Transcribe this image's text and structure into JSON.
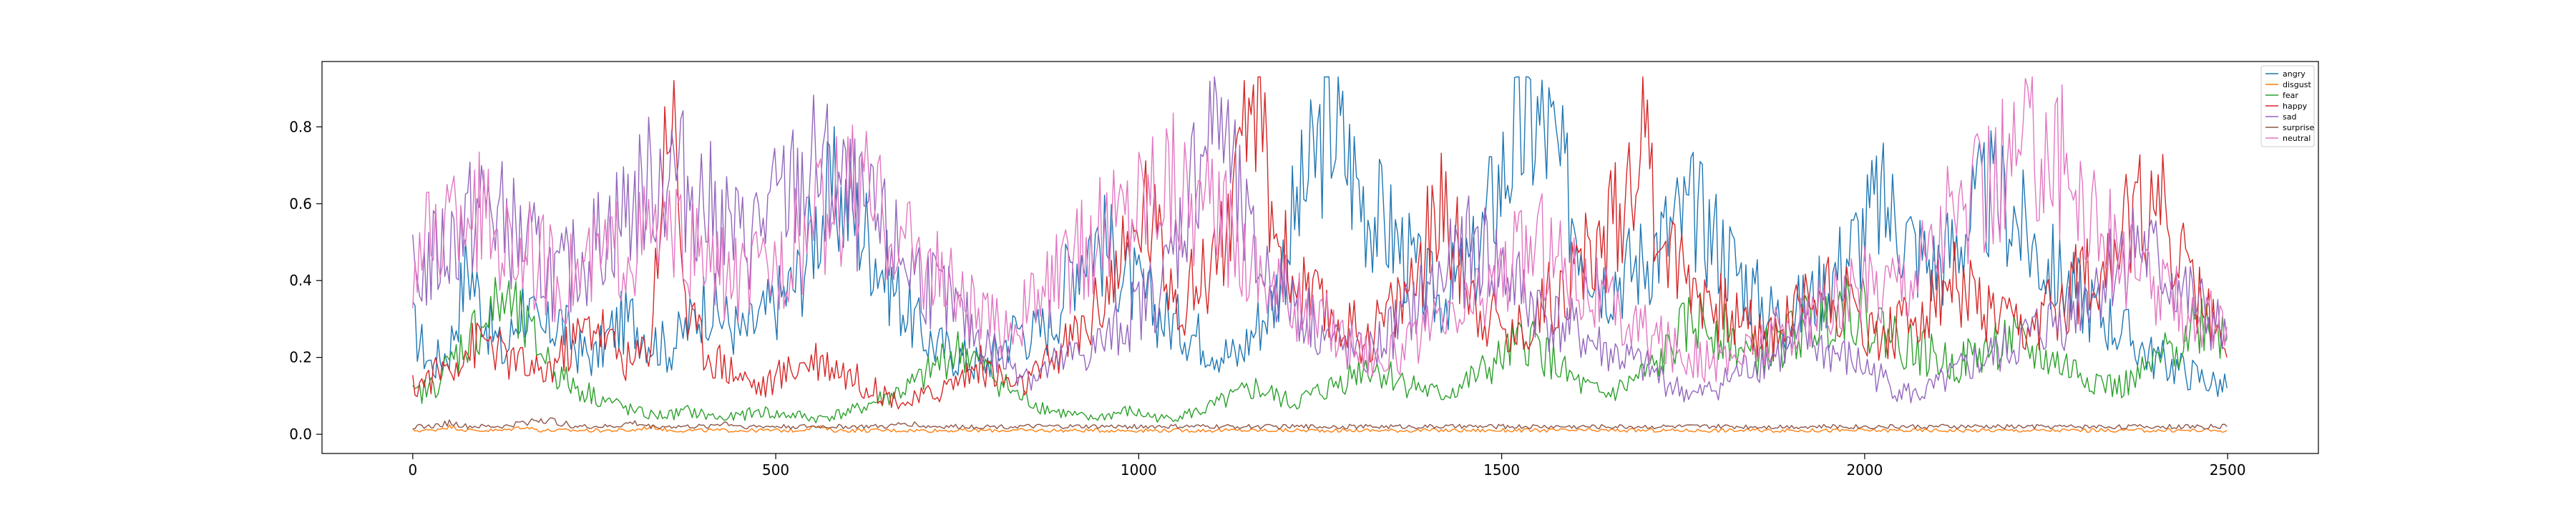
{
  "chart_data": {
    "type": "line",
    "title": "",
    "xlabel": "",
    "ylabel": "",
    "xlim": [
      -125,
      2625
    ],
    "ylim": [
      -0.05,
      0.97
    ],
    "xticks": [
      0,
      500,
      1000,
      1500,
      2000,
      2500
    ],
    "yticks": [
      0.0,
      0.2,
      0.4,
      0.6,
      0.8
    ],
    "xtick_labels": [
      "0",
      "500",
      "1000",
      "1500",
      "2000",
      "2500"
    ],
    "ytick_labels": [
      "0.0",
      "0.2",
      "0.4",
      "0.6",
      "0.8"
    ],
    "n_points": 2500,
    "grid": false,
    "legend_position": "top-right",
    "series": [
      {
        "name": "angry",
        "color": "#1f77b4",
        "values": [
          0.28,
          0.18,
          0.22,
          0.45,
          0.3,
          0.2,
          0.35,
          0.25,
          0.3,
          0.22,
          0.2,
          0.28,
          0.3,
          0.25,
          0.22,
          0.28,
          0.35,
          0.3,
          0.26,
          0.3,
          0.35,
          0.4,
          0.55,
          0.62,
          0.58,
          0.5,
          0.4,
          0.32,
          0.25,
          0.22,
          0.2,
          0.18,
          0.22,
          0.28,
          0.26,
          0.3,
          0.45,
          0.52,
          0.48,
          0.4,
          0.35,
          0.3,
          0.28,
          0.25,
          0.22,
          0.2,
          0.28,
          0.35,
          0.55,
          0.68,
          0.84,
          0.72,
          0.6,
          0.55,
          0.48,
          0.4,
          0.35,
          0.4,
          0.45,
          0.62,
          0.75,
          0.82,
          0.78,
          0.62,
          0.5,
          0.4,
          0.42,
          0.45,
          0.5,
          0.55,
          0.58,
          0.52,
          0.45,
          0.38,
          0.32,
          0.3,
          0.34,
          0.38,
          0.45,
          0.52,
          0.6,
          0.56,
          0.48,
          0.44,
          0.48,
          0.56,
          0.62,
          0.6,
          0.52,
          0.45,
          0.4,
          0.36,
          0.32,
          0.28,
          0.24,
          0.2,
          0.18,
          0.16,
          0.14,
          0.12
        ]
      },
      {
        "name": "disgust",
        "color": "#ff7f0e",
        "values": [
          0.01,
          0.01,
          0.02,
          0.01,
          0.01,
          0.01,
          0.02,
          0.01,
          0.01,
          0.01,
          0.01,
          0.01,
          0.01,
          0.02,
          0.01,
          0.01,
          0.01,
          0.01,
          0.01,
          0.01,
          0.01,
          0.01,
          0.02,
          0.01,
          0.01,
          0.01,
          0.01,
          0.01,
          0.01,
          0.01,
          0.01,
          0.01,
          0.01,
          0.01,
          0.01,
          0.01,
          0.01,
          0.01,
          0.01,
          0.01,
          0.01,
          0.01,
          0.01,
          0.01,
          0.01,
          0.01,
          0.01,
          0.01,
          0.01,
          0.01,
          0.01,
          0.01,
          0.01,
          0.01,
          0.01,
          0.01,
          0.01,
          0.01,
          0.01,
          0.01,
          0.01,
          0.01,
          0.01,
          0.01,
          0.01,
          0.01,
          0.01,
          0.01,
          0.01,
          0.01,
          0.01,
          0.01,
          0.01,
          0.01,
          0.01,
          0.01,
          0.01,
          0.01,
          0.01,
          0.01,
          0.01,
          0.01,
          0.01,
          0.01,
          0.01,
          0.01,
          0.01,
          0.01,
          0.01,
          0.01,
          0.01,
          0.01,
          0.01,
          0.01,
          0.01,
          0.01,
          0.01,
          0.01,
          0.01,
          0.01
        ]
      },
      {
        "name": "fear",
        "color": "#2ca02c",
        "values": [
          0.1,
          0.12,
          0.18,
          0.25,
          0.3,
          0.35,
          0.28,
          0.22,
          0.15,
          0.12,
          0.1,
          0.08,
          0.06,
          0.05,
          0.05,
          0.06,
          0.05,
          0.04,
          0.05,
          0.06,
          0.05,
          0.05,
          0.04,
          0.05,
          0.06,
          0.08,
          0.1,
          0.12,
          0.15,
          0.2,
          0.22,
          0.18,
          0.14,
          0.1,
          0.08,
          0.06,
          0.05,
          0.04,
          0.05,
          0.06,
          0.05,
          0.04,
          0.05,
          0.06,
          0.08,
          0.1,
          0.12,
          0.1,
          0.08,
          0.1,
          0.12,
          0.15,
          0.18,
          0.16,
          0.14,
          0.12,
          0.1,
          0.12,
          0.15,
          0.18,
          0.22,
          0.25,
          0.2,
          0.15,
          0.12,
          0.1,
          0.12,
          0.15,
          0.18,
          0.25,
          0.3,
          0.28,
          0.25,
          0.2,
          0.22,
          0.25,
          0.28,
          0.3,
          0.35,
          0.32,
          0.28,
          0.25,
          0.22,
          0.2,
          0.18,
          0.2,
          0.22,
          0.25,
          0.22,
          0.2,
          0.18,
          0.16,
          0.14,
          0.12,
          0.14,
          0.18,
          0.22,
          0.28,
          0.3,
          0.25
        ]
      },
      {
        "name": "happy",
        "color": "#d62728",
        "values": [
          0.12,
          0.15,
          0.18,
          0.22,
          0.25,
          0.2,
          0.18,
          0.15,
          0.2,
          0.25,
          0.3,
          0.22,
          0.18,
          0.25,
          0.93,
          0.3,
          0.22,
          0.18,
          0.15,
          0.12,
          0.15,
          0.18,
          0.2,
          0.18,
          0.15,
          0.12,
          0.1,
          0.08,
          0.1,
          0.12,
          0.15,
          0.18,
          0.15,
          0.12,
          0.15,
          0.2,
          0.25,
          0.3,
          0.4,
          0.45,
          0.6,
          0.45,
          0.35,
          0.4,
          0.5,
          0.6,
          0.92,
          0.55,
          0.4,
          0.35,
          0.3,
          0.28,
          0.25,
          0.3,
          0.35,
          0.45,
          0.6,
          0.48,
          0.35,
          0.3,
          0.25,
          0.3,
          0.35,
          0.4,
          0.45,
          0.5,
          0.6,
          0.82,
          0.55,
          0.45,
          0.4,
          0.35,
          0.3,
          0.28,
          0.25,
          0.3,
          0.35,
          0.4,
          0.35,
          0.3,
          0.25,
          0.28,
          0.3,
          0.35,
          0.4,
          0.35,
          0.3,
          0.28,
          0.25,
          0.3,
          0.35,
          0.4,
          0.45,
          0.5,
          0.55,
          0.65,
          0.5,
          0.4,
          0.3,
          0.2
        ]
      },
      {
        "name": "sad",
        "color": "#9467bd",
        "values": [
          0.4,
          0.45,
          0.5,
          0.55,
          0.6,
          0.55,
          0.5,
          0.45,
          0.4,
          0.45,
          0.5,
          0.55,
          0.6,
          0.65,
          0.7,
          0.65,
          0.6,
          0.55,
          0.5,
          0.55,
          0.6,
          0.65,
          0.7,
          0.65,
          0.6,
          0.55,
          0.5,
          0.45,
          0.4,
          0.35,
          0.3,
          0.25,
          0.2,
          0.18,
          0.15,
          0.18,
          0.2,
          0.22,
          0.25,
          0.3,
          0.35,
          0.4,
          0.55,
          0.75,
          0.85,
          0.6,
          0.45,
          0.4,
          0.35,
          0.3,
          0.25,
          0.22,
          0.2,
          0.25,
          0.3,
          0.35,
          0.4,
          0.45,
          0.5,
          0.45,
          0.4,
          0.35,
          0.3,
          0.28,
          0.25,
          0.22,
          0.2,
          0.18,
          0.15,
          0.12,
          0.1,
          0.12,
          0.15,
          0.18,
          0.2,
          0.22,
          0.25,
          0.22,
          0.2,
          0.18,
          0.15,
          0.12,
          0.1,
          0.12,
          0.15,
          0.18,
          0.2,
          0.22,
          0.25,
          0.28,
          0.3,
          0.35,
          0.4,
          0.45,
          0.5,
          0.45,
          0.4,
          0.35,
          0.3,
          0.25
        ]
      },
      {
        "name": "surprise",
        "color": "#8c564b",
        "values": [
          0.02,
          0.02,
          0.03,
          0.02,
          0.02,
          0.02,
          0.03,
          0.04,
          0.03,
          0.02,
          0.02,
          0.02,
          0.03,
          0.02,
          0.02,
          0.02,
          0.02,
          0.03,
          0.02,
          0.02,
          0.02,
          0.02,
          0.02,
          0.02,
          0.02,
          0.02,
          0.02,
          0.03,
          0.02,
          0.02,
          0.02,
          0.02,
          0.02,
          0.02,
          0.02,
          0.02,
          0.02,
          0.02,
          0.02,
          0.02,
          0.02,
          0.02,
          0.02,
          0.02,
          0.02,
          0.02,
          0.02,
          0.02,
          0.02,
          0.02,
          0.02,
          0.02,
          0.02,
          0.02,
          0.02,
          0.02,
          0.02,
          0.02,
          0.02,
          0.02,
          0.02,
          0.02,
          0.02,
          0.02,
          0.02,
          0.02,
          0.02,
          0.02,
          0.02,
          0.02,
          0.02,
          0.02,
          0.02,
          0.02,
          0.02,
          0.02,
          0.02,
          0.02,
          0.02,
          0.02,
          0.02,
          0.02,
          0.02,
          0.02,
          0.02,
          0.02,
          0.02,
          0.02,
          0.02,
          0.02,
          0.02,
          0.02,
          0.02,
          0.02,
          0.02,
          0.02,
          0.02,
          0.02,
          0.02,
          0.02
        ]
      },
      {
        "name": "neutral",
        "color": "#e377c2",
        "values": [
          0.45,
          0.5,
          0.55,
          0.6,
          0.55,
          0.5,
          0.48,
          0.45,
          0.4,
          0.42,
          0.45,
          0.48,
          0.5,
          0.52,
          0.5,
          0.48,
          0.45,
          0.42,
          0.4,
          0.42,
          0.45,
          0.5,
          0.55,
          0.6,
          0.65,
          0.6,
          0.55,
          0.5,
          0.45,
          0.4,
          0.35,
          0.3,
          0.28,
          0.3,
          0.35,
          0.4,
          0.45,
          0.5,
          0.55,
          0.6,
          0.65,
          0.7,
          0.65,
          0.6,
          0.55,
          0.5,
          0.45,
          0.4,
          0.35,
          0.3,
          0.28,
          0.25,
          0.22,
          0.2,
          0.22,
          0.25,
          0.28,
          0.3,
          0.35,
          0.4,
          0.45,
          0.5,
          0.48,
          0.45,
          0.4,
          0.35,
          0.3,
          0.28,
          0.25,
          0.22,
          0.2,
          0.18,
          0.2,
          0.22,
          0.25,
          0.28,
          0.3,
          0.32,
          0.35,
          0.38,
          0.4,
          0.42,
          0.45,
          0.5,
          0.55,
          0.6,
          0.65,
          0.7,
          0.75,
          0.78,
          0.7,
          0.62,
          0.55,
          0.48,
          0.42,
          0.38,
          0.35,
          0.32,
          0.3,
          0.28
        ]
      }
    ]
  }
}
